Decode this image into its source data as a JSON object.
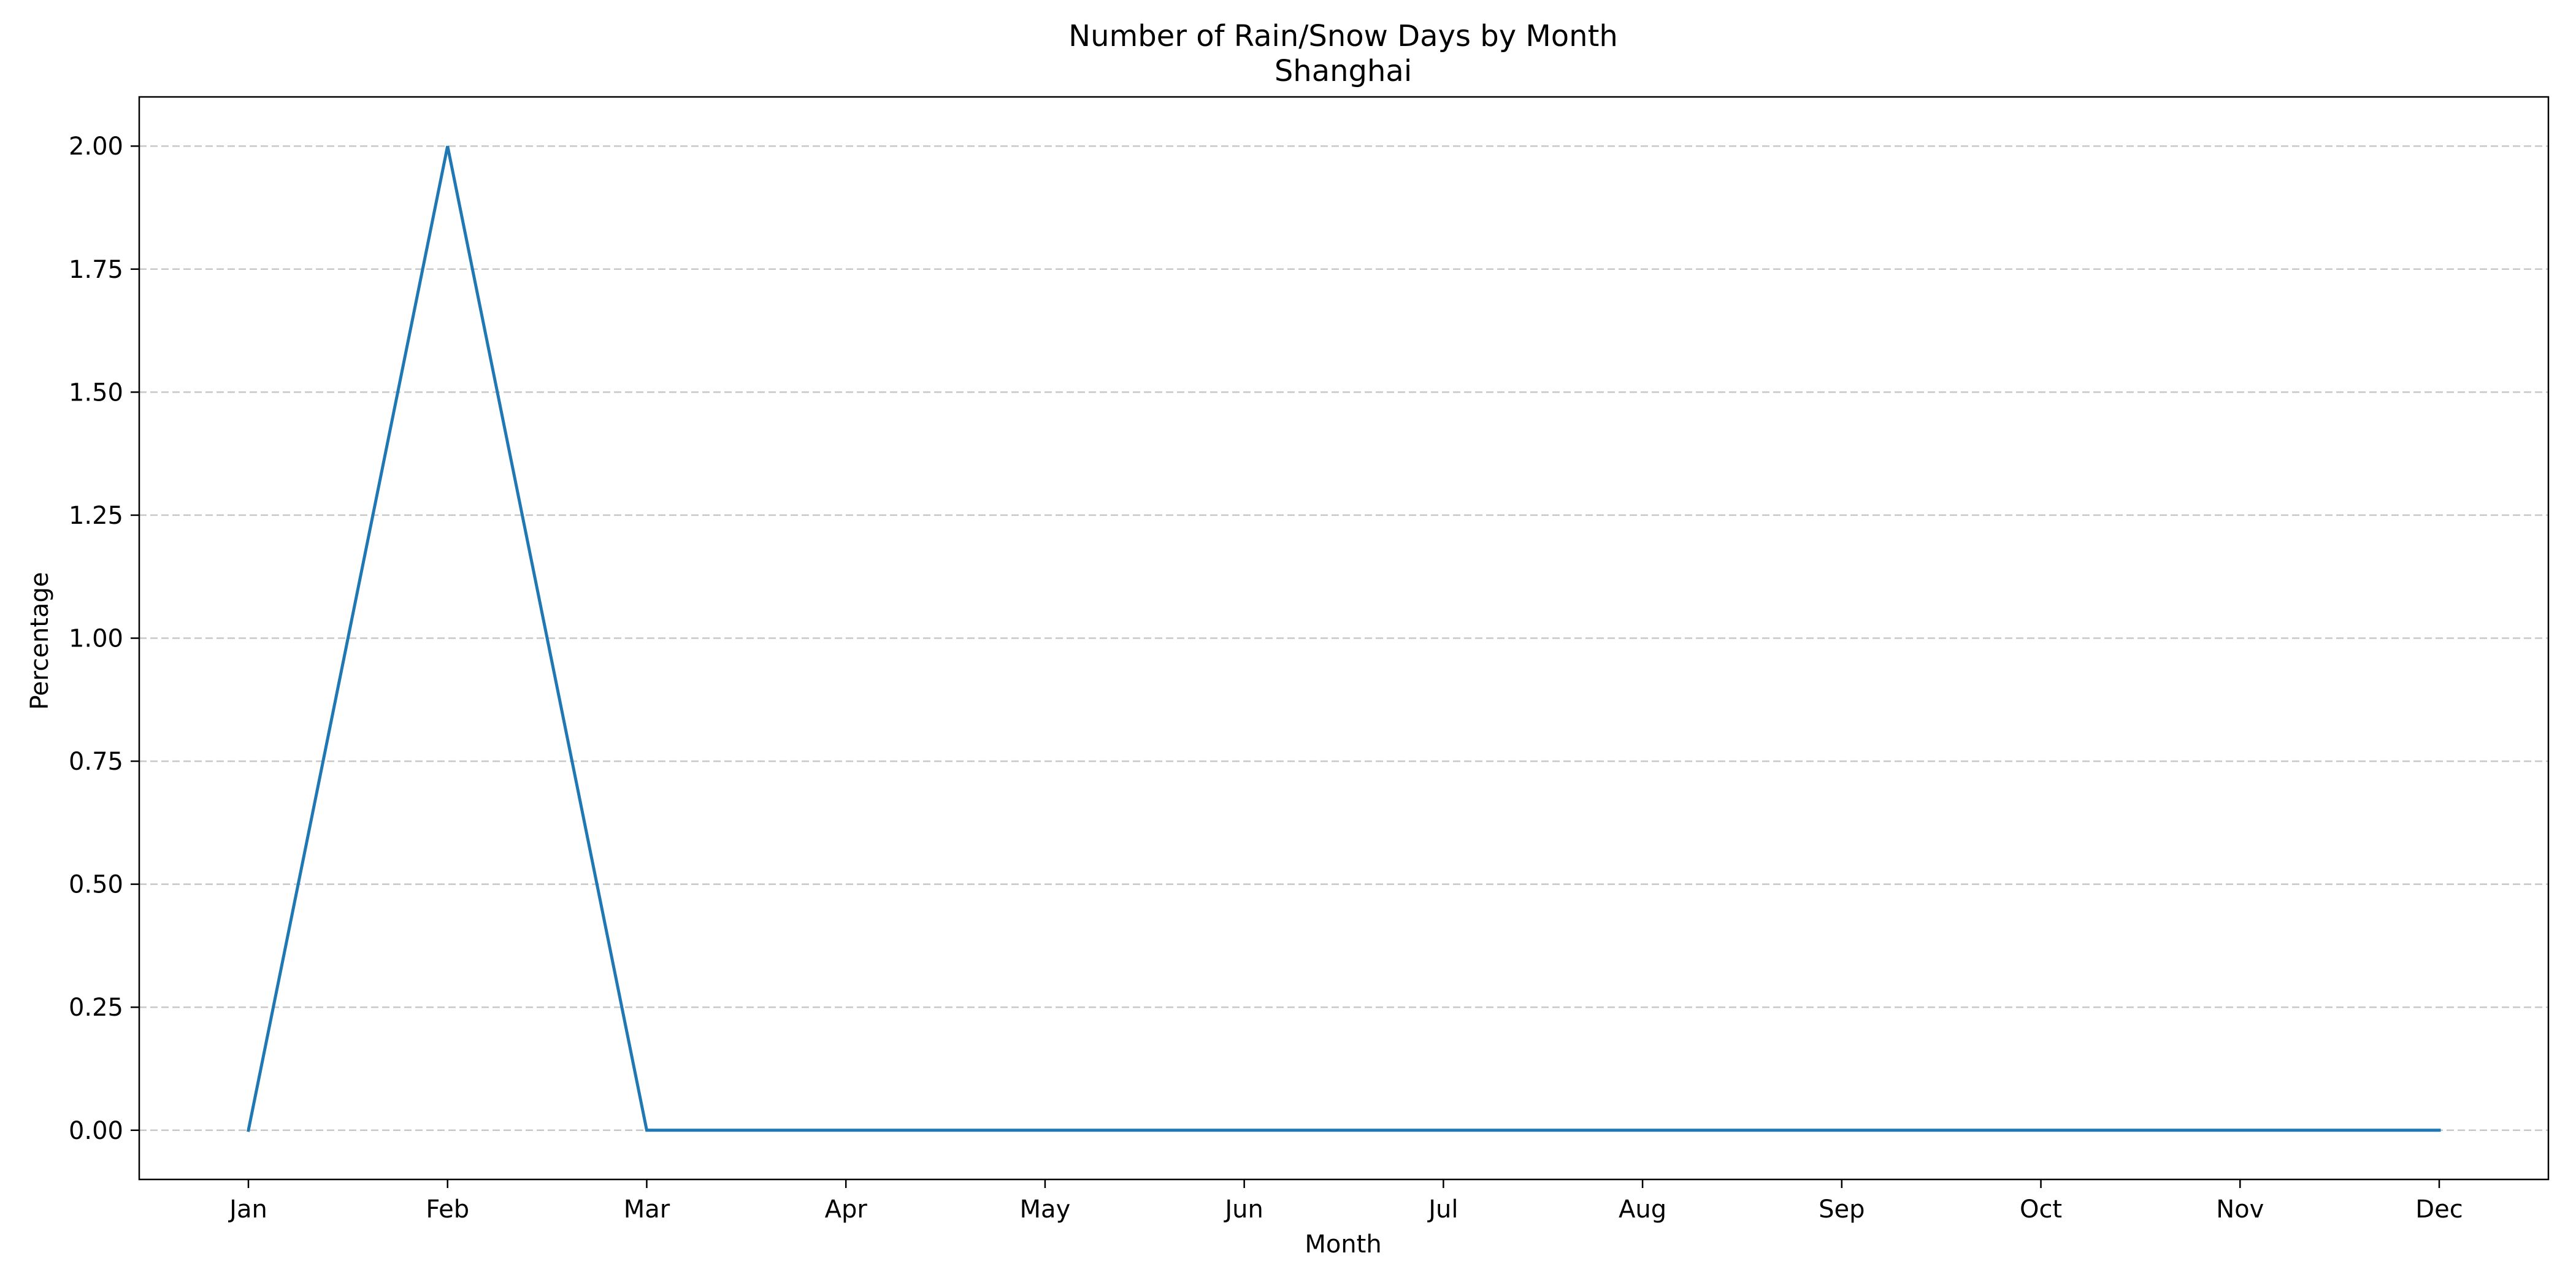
{
  "chart_data": {
    "type": "line",
    "title": "Number of Rain/Snow Days by Month",
    "subtitle": "Shanghai",
    "xlabel": "Month",
    "ylabel": "Percentage",
    "categories": [
      "Jan",
      "Feb",
      "Mar",
      "Apr",
      "May",
      "Jun",
      "Jul",
      "Aug",
      "Sep",
      "Oct",
      "Nov",
      "Dec"
    ],
    "series": [
      {
        "values": [
          0,
          2,
          0,
          0,
          0,
          0,
          0,
          0,
          0,
          0,
          0,
          0
        ],
        "color": "#1f77b4"
      }
    ],
    "ylim": [
      -0.1,
      2.1
    ],
    "yticks": [
      "0.00",
      "0.25",
      "0.50",
      "0.75",
      "1.00",
      "1.25",
      "1.50",
      "1.75",
      "2.00"
    ],
    "grid": "horizontal, dashed",
    "grid_color": "#c8c8c8"
  }
}
